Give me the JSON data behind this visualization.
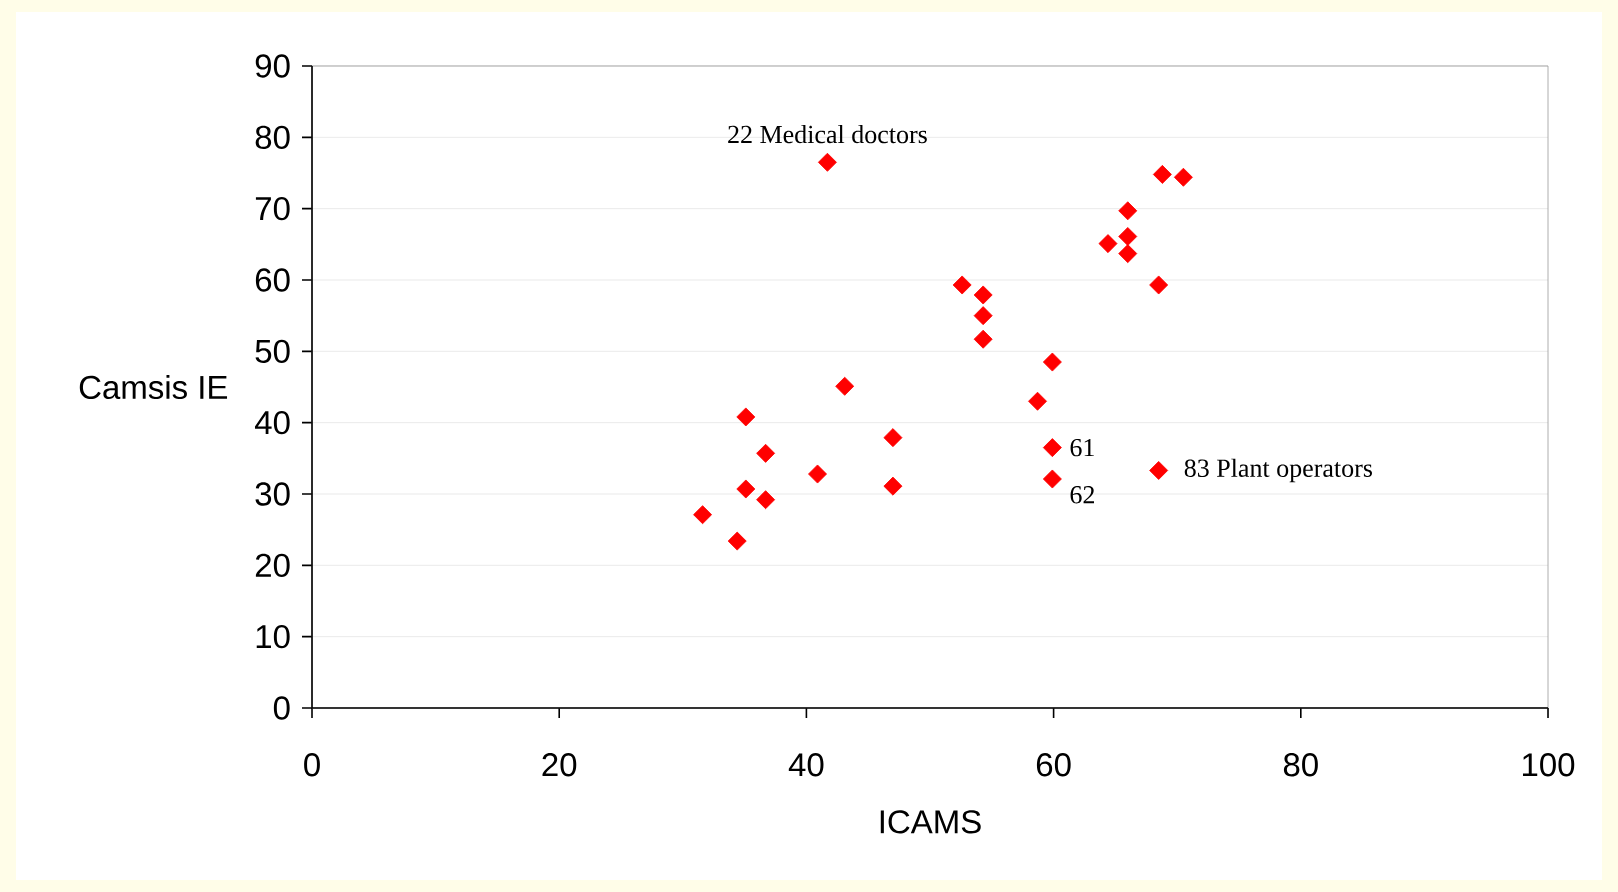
{
  "chart_data": {
    "type": "scatter",
    "xlabel": "ICAMS",
    "ylabel": "Camsis IE",
    "x": [
      41.7,
      68.8,
      70.5,
      66.0,
      66.0,
      64.4,
      66.0,
      68.5,
      52.6,
      54.3,
      54.3,
      54.3,
      59.9,
      43.1,
      58.7,
      35.1,
      47.0,
      59.9,
      36.7,
      68.5,
      40.9,
      59.9,
      35.1,
      47.0,
      36.7,
      31.6,
      34.4
    ],
    "values": [
      76.5,
      74.8,
      74.4,
      69.7,
      66.1,
      65.1,
      63.7,
      59.3,
      59.3,
      57.9,
      55.0,
      51.7,
      48.5,
      45.1,
      43.0,
      40.8,
      37.9,
      36.5,
      35.7,
      33.3,
      32.8,
      32.1,
      30.7,
      31.1,
      29.2,
      27.1,
      23.4
    ],
    "color": "#ff0000",
    "marker": "diamond",
    "xlim": [
      0,
      100
    ],
    "xticks": [
      0,
      20,
      40,
      60,
      80,
      100
    ],
    "ylim": [
      0,
      90
    ],
    "yticks": [
      0,
      10,
      20,
      30,
      40,
      50,
      60,
      70,
      80,
      90
    ],
    "grid": "y",
    "annotations": [
      {
        "text": "22 Medical doctors",
        "x": 41.7,
        "y": 76.5
      },
      {
        "text": "61",
        "x": 59.9,
        "y": 36.5
      },
      {
        "text": "62",
        "x": 59.9,
        "y": 32.1
      },
      {
        "text": "83 Plant operators",
        "x": 68.5,
        "y": 33.3
      }
    ]
  }
}
